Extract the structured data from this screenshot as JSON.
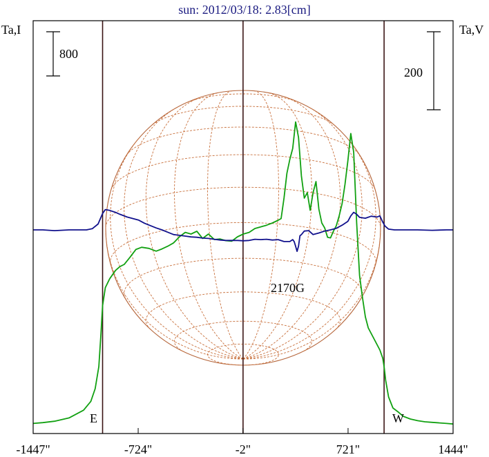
{
  "chart_data": {
    "type": "line",
    "title": "sun: 2012/03/18: 2.83[cm]",
    "ylabel_left": "Ta,I",
    "ylabel_right": "Ta,V",
    "scale_left": "800",
    "scale_right": "200",
    "x_ticks": [
      "-1447\"",
      "-724\"",
      "-2\"",
      "721\"",
      "1444\""
    ],
    "x_tick_values": [
      -1447,
      -724,
      -2,
      721,
      1444
    ],
    "xlim": [
      -1447,
      1444
    ],
    "limb_east_label": "E",
    "limb_west_label": "W",
    "limb_positions": [
      -969,
      -2,
      969
    ],
    "annotation": "2170G",
    "annotation_x": 400,
    "grid": false,
    "series": [
      {
        "name": "",
        "color": "#10a010",
        "x": [
          -1447,
          -1380,
          -1300,
          -1200,
          -1100,
          -1050,
          -1020,
          -995,
          -980,
          -969,
          -950,
          -920,
          -880,
          -850,
          -820,
          -780,
          -740,
          -700,
          -650,
          -600,
          -560,
          -520,
          -480,
          -440,
          -400,
          -360,
          -320,
          -280,
          -240,
          -200,
          -160,
          -120,
          -80,
          -40,
          0,
          40,
          80,
          120,
          160,
          200,
          240,
          260,
          280,
          300,
          320,
          340,
          360,
          380,
          400,
          420,
          440,
          460,
          480,
          500,
          520,
          540,
          560,
          580,
          600,
          620,
          640,
          660,
          680,
          700,
          720,
          740,
          760,
          780,
          800,
          820,
          840,
          860,
          880,
          900,
          920,
          940,
          960,
          969,
          980,
          1000,
          1030,
          1070,
          1100,
          1150,
          1200,
          1250,
          1300,
          1350,
          1400,
          1444
        ],
        "y": [
          20,
          35,
          60,
          120,
          260,
          420,
          650,
          1050,
          1650,
          2150,
          2480,
          2640,
          2790,
          2860,
          2900,
          3030,
          3170,
          3210,
          3190,
          3140,
          3180,
          3230,
          3290,
          3400,
          3480,
          3450,
          3500,
          3370,
          3450,
          3350,
          3360,
          3330,
          3320,
          3400,
          3450,
          3480,
          3550,
          3580,
          3610,
          3650,
          3700,
          3730,
          4100,
          4550,
          4800,
          5000,
          5480,
          5200,
          4500,
          4100,
          4200,
          3880,
          4200,
          4400,
          3900,
          3650,
          3560,
          3390,
          3380,
          3500,
          3600,
          3780,
          4000,
          4350,
          4780,
          5270,
          4930,
          3650,
          2700,
          2300,
          1950,
          1750,
          1650,
          1550,
          1450,
          1350,
          1200,
          1050,
          800,
          500,
          300,
          220,
          150,
          100,
          70,
          50,
          40,
          30,
          20,
          10
        ]
      },
      {
        "name": "",
        "color": "#10108c",
        "x": [
          -1447,
          -1380,
          -1300,
          -1200,
          -1080,
          -1040,
          -1000,
          -969,
          -950,
          -920,
          -880,
          -850,
          -800,
          -760,
          -720,
          -680,
          -640,
          -600,
          -560,
          -520,
          -480,
          -440,
          -400,
          -360,
          -320,
          -280,
          -240,
          -200,
          -160,
          -120,
          -80,
          -40,
          0,
          40,
          80,
          120,
          160,
          200,
          240,
          280,
          320,
          340,
          350,
          360,
          370,
          380,
          390,
          400,
          420,
          450,
          480,
          520,
          560,
          600,
          640,
          680,
          720,
          740,
          760,
          780,
          800,
          840,
          880,
          920,
          940,
          960,
          975,
          1000,
          1040,
          1100,
          1200,
          1300,
          1400,
          1444
        ],
        "y": [
          0,
          0,
          -2,
          0,
          0,
          3,
          15,
          42,
          52,
          50,
          45,
          40,
          33,
          29,
          25,
          17,
          11,
          5,
          0,
          -6,
          -12,
          -14,
          -16,
          -18,
          -19,
          -21,
          -22,
          -24,
          -26,
          -27,
          -27,
          -27,
          -28,
          -27,
          -24,
          -25,
          -24,
          -26,
          -25,
          -30,
          -30,
          -25,
          -30,
          -42,
          -55,
          -42,
          -15,
          -12,
          -3,
          -2,
          -12,
          -8,
          -3,
          0,
          4,
          12,
          22,
          36,
          45,
          40,
          32,
          30,
          35,
          33,
          36,
          20,
          10,
          2,
          0,
          0,
          0,
          -1,
          0,
          0
        ]
      }
    ]
  }
}
